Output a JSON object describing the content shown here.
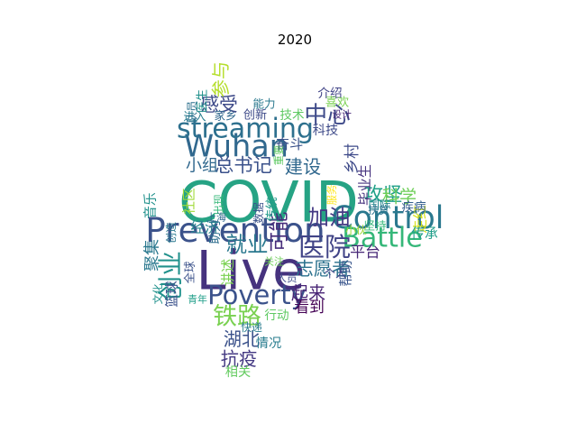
{
  "chart_data": {
    "type": "wordcloud",
    "title": "2020",
    "colormap": "viridis",
    "words": [
      {
        "text": "COVID",
        "weight": 1.0,
        "color": "#26a384",
        "orientation": "horizontal"
      },
      {
        "text": "Live",
        "weight": 0.95,
        "color": "#46327e",
        "orientation": "horizontal"
      },
      {
        "text": "Prevention",
        "weight": 0.55,
        "color": "#3b528b",
        "orientation": "horizontal"
      },
      {
        "text": "Control",
        "weight": 0.5,
        "color": "#2a788e",
        "orientation": "horizontal"
      },
      {
        "text": "Wuhan",
        "weight": 0.48,
        "color": "#31688e",
        "orientation": "horizontal"
      },
      {
        "text": "streaming",
        "weight": 0.42,
        "color": "#2d708e",
        "orientation": "horizontal"
      },
      {
        "text": "Battle",
        "weight": 0.42,
        "color": "#35b779",
        "orientation": "horizontal"
      },
      {
        "text": "Poverty",
        "weight": 0.4,
        "color": "#3b528b",
        "orientation": "horizontal"
      },
      {
        "text": "医院",
        "weight": 0.4,
        "color": "#414487",
        "orientation": "horizontal"
      },
      {
        "text": "创业",
        "weight": 0.38,
        "color": "#21918c",
        "orientation": "vertical"
      },
      {
        "text": "铁路",
        "weight": 0.36,
        "color": "#7ad151",
        "orientation": "horizontal"
      },
      {
        "text": "中心",
        "weight": 0.34,
        "color": "#3e4a89",
        "orientation": "horizontal"
      },
      {
        "text": "加油",
        "weight": 0.3,
        "color": "#443983",
        "orientation": "horizontal"
      },
      {
        "text": "就业",
        "weight": 0.3,
        "color": "#2a788e",
        "orientation": "horizontal"
      },
      {
        "text": "可能",
        "weight": 0.28,
        "color": "#472d7b",
        "orientation": "vertical"
      },
      {
        "text": "攻坚",
        "weight": 0.26,
        "color": "#1fa088",
        "orientation": "horizontal"
      },
      {
        "text": "总书记",
        "weight": 0.26,
        "color": "#3b528b",
        "orientation": "horizontal"
      },
      {
        "text": "感受",
        "weight": 0.25,
        "color": "#3e4a89",
        "orientation": "horizontal"
      },
      {
        "text": "参与",
        "weight": 0.24,
        "color": "#b5de2b",
        "orientation": "vertical"
      },
      {
        "text": "建设",
        "weight": 0.24,
        "color": "#31688e",
        "orientation": "horizontal"
      },
      {
        "text": "志愿者",
        "weight": 0.24,
        "color": "#2c728e",
        "orientation": "horizontal"
      },
      {
        "text": "湖北",
        "weight": 0.24,
        "color": "#3b528b",
        "orientation": "horizontal"
      },
      {
        "text": "抗疫",
        "weight": 0.24,
        "color": "#443983",
        "orientation": "horizontal"
      },
      {
        "text": "起来",
        "weight": 0.22,
        "color": "#482475",
        "orientation": "horizontal"
      },
      {
        "text": "科学",
        "weight": 0.22,
        "color": "#6ece58",
        "orientation": "horizontal"
      },
      {
        "text": "小组",
        "weight": 0.2,
        "color": "#31688e",
        "orientation": "horizontal"
      },
      {
        "text": "聚集",
        "weight": 0.2,
        "color": "#2a788e",
        "orientation": "vertical"
      },
      {
        "text": "乡村",
        "weight": 0.18,
        "color": "#3e4a89",
        "orientation": "vertical"
      },
      {
        "text": "平台",
        "weight": 0.18,
        "color": "#482878",
        "orientation": "horizontal"
      },
      {
        "text": "看到",
        "weight": 0.18,
        "color": "#440154",
        "orientation": "horizontal"
      },
      {
        "text": "经济",
        "weight": 0.16,
        "color": "#25848e",
        "orientation": "horizontal"
      },
      {
        "text": "走红",
        "weight": 0.16,
        "color": "#d8e219",
        "orientation": "vertical"
      },
      {
        "text": "毕业生",
        "weight": 0.15,
        "color": "#46327e",
        "orientation": "vertical"
      },
      {
        "text": "奋斗",
        "weight": 0.15,
        "color": "#3b528b",
        "orientation": "horizontal"
      },
      {
        "text": "讲述",
        "weight": 0.15,
        "color": "#7ad151",
        "orientation": "vertical"
      },
      {
        "text": "传承",
        "weight": 0.14,
        "color": "#1f9e89",
        "orientation": "horizontal"
      },
      {
        "text": "帮助",
        "weight": 0.14,
        "color": "#39568c",
        "orientation": "vertical"
      },
      {
        "text": "篮球",
        "weight": 0.14,
        "color": "#3b528b",
        "orientation": "vertical"
      },
      {
        "text": "社区",
        "weight": 0.14,
        "color": "#a0da39",
        "orientation": "vertical"
      },
      {
        "text": "音乐",
        "weight": 0.14,
        "color": "#21918c",
        "orientation": "vertical"
      },
      {
        "text": "科技",
        "weight": 0.13,
        "color": "#3e4a89",
        "orientation": "horizontal"
      },
      {
        "text": "情况",
        "weight": 0.13,
        "color": "#287c8e",
        "orientation": "horizontal"
      },
      {
        "text": "相关",
        "weight": 0.13,
        "color": "#63cb5f",
        "orientation": "horizontal"
      },
      {
        "text": "介绍",
        "weight": 0.12,
        "color": "#414487",
        "orientation": "horizontal"
      },
      {
        "text": "技术",
        "weight": 0.12,
        "color": "#5ec962",
        "orientation": "horizontal"
      },
      {
        "text": "传统",
        "weight": 0.12,
        "color": "#1f9a8a",
        "orientation": "vertical"
      },
      {
        "text": "助力",
        "weight": 0.12,
        "color": "#2e6e8e",
        "orientation": "vertical"
      },
      {
        "text": "疾病",
        "weight": 0.12,
        "color": "#355f8d",
        "orientation": "horizontal"
      },
      {
        "text": "行动",
        "weight": 0.12,
        "color": "#5ec962",
        "orientation": "horizontal"
      },
      {
        "text": "喜欢",
        "weight": 0.11,
        "color": "#7ad151",
        "orientation": "horizontal"
      },
      {
        "text": "医生",
        "weight": 0.11,
        "color": "#21918c",
        "orientation": "vertical"
      },
      {
        "text": "创新",
        "weight": 0.11,
        "color": "#3e4a89",
        "orientation": "horizontal"
      },
      {
        "text": "能力",
        "weight": 0.1,
        "color": "#2a788e",
        "orientation": "horizontal"
      },
      {
        "text": "国际",
        "weight": 0.1,
        "color": "#25858e",
        "orientation": "horizontal"
      },
      {
        "text": "坚持",
        "weight": 0.1,
        "color": "#35b779",
        "orientation": "horizontal"
      },
      {
        "text": "进入",
        "weight": 0.1,
        "color": "#287d8e",
        "orientation": "horizontal"
      },
      {
        "text": "全球",
        "weight": 0.1,
        "color": "#3b528b",
        "orientation": "vertical"
      },
      {
        "text": "个人",
        "weight": 0.1,
        "color": "#414487",
        "orientation": "horizontal"
      },
      {
        "text": "家乡",
        "weight": 0.1,
        "color": "#31688e",
        "orientation": "horizontal"
      },
      {
        "text": "队员",
        "weight": 0.1,
        "color": "#2d708e",
        "orientation": "vertical"
      },
      {
        "text": "扶贫",
        "weight": 0.09,
        "color": "#2c728e",
        "orientation": "horizontal"
      },
      {
        "text": "小伙",
        "weight": 0.09,
        "color": "#a0da39",
        "orientation": "horizontal"
      },
      {
        "text": "出现",
        "weight": 0.09,
        "color": "#35b779",
        "orientation": "vertical"
      },
      {
        "text": "创造",
        "weight": 0.09,
        "color": "#2a788e",
        "orientation": "vertical"
      },
      {
        "text": "数据",
        "weight": 0.09,
        "color": "#3b528b",
        "orientation": "vertical"
      },
      {
        "text": "快递",
        "weight": 0.09,
        "color": "#287c8e",
        "orientation": "horizontal"
      },
      {
        "text": "文化",
        "weight": 0.08,
        "color": "#21918c",
        "orientation": "vertical"
      },
      {
        "text": "重要",
        "weight": 0.08,
        "color": "#5ec962",
        "orientation": "vertical"
      },
      {
        "text": "服务",
        "weight": 0.08,
        "color": "#fde725",
        "orientation": "vertical"
      },
      {
        "text": "人员",
        "weight": 0.08,
        "color": "#3e4a89",
        "orientation": "horizontal"
      },
      {
        "text": "上海",
        "weight": 0.07,
        "color": "#31688e",
        "orientation": "horizontal"
      },
      {
        "text": "青年",
        "weight": 0.07,
        "color": "#1f9e89",
        "orientation": "horizontal"
      },
      {
        "text": "关注",
        "weight": 0.07,
        "color": "#6ece58",
        "orientation": "horizontal"
      },
      {
        "text": "设计",
        "weight": 0.07,
        "color": "#482878",
        "orientation": "horizontal"
      }
    ]
  }
}
